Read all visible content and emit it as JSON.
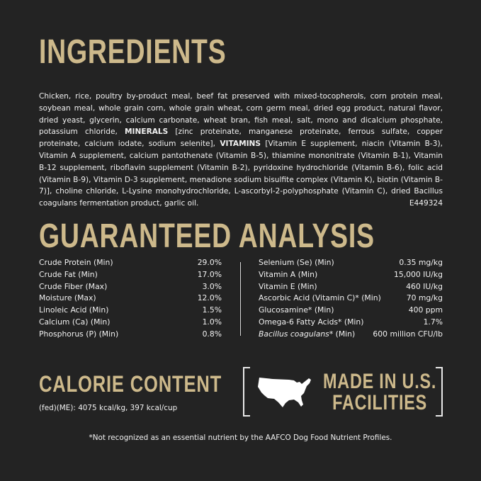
{
  "ingredients": {
    "title": "INGREDIENTS",
    "text_1": "Chicken, rice, poultry by-product meal, beef fat preserved with mixed-tocopherols, corn protein meal, soybean meal, whole grain corn, whole grain wheat, corn germ meal, dried egg product, natural flavor, dried yeast, glycerin, calcium carbonate, wheat bran, fish meal, salt, mono and dicalcium phosphate, potassium chloride, ",
    "minerals_label": "MINERALS",
    "text_2": " [zinc proteinate, manganese proteinate, ferrous sulfate, copper proteinate, calcium iodate, sodium selenite], ",
    "vitamins_label": "VITAMINS",
    "text_3": " [Vitamin E supplement, niacin (Vitamin B-3), Vitamin A supplement, calcium pantothenate (Vitamin B-5), thiamine mononitrate (Vitamin B-1), Vitamin B-12 supplement, riboflavin supplement (Vitamin B-2), pyridoxine hydrochloride (Vitamin B-6), folic acid (Vitamin B-9), Vitamin D-3 supplement, menadione sodium bisulfite complex (Vitamin K), biotin (Vitamin B-7)], choline chloride, L-Lysine monohydrochloride, L-ascorbyl-2-polyphosphate (Vitamin C), dried Bacillus coagulans fermentation product, garlic oil.",
    "code": "E449324"
  },
  "analysis": {
    "title": "GUARANTEED ANALYSIS",
    "left": [
      {
        "label": "Crude Protein (Min)",
        "value": "29.0%"
      },
      {
        "label": "Crude Fat (Min)",
        "value": "17.0%"
      },
      {
        "label": "Crude Fiber (Max)",
        "value": "3.0%"
      },
      {
        "label": "Moisture (Max)",
        "value": "12.0%"
      },
      {
        "label": "Linoleic Acid (Min)",
        "value": "1.5%"
      },
      {
        "label": "Calcium (Ca) (Min)",
        "value": "1.0%"
      },
      {
        "label": "Phosphorus (P) (Min)",
        "value": "0.8%"
      }
    ],
    "right": [
      {
        "label": "Selenium (Se) (Min)",
        "value": "0.35 mg/kg"
      },
      {
        "label": "Vitamin A (Min)",
        "value": "15,000 IU/kg"
      },
      {
        "label": "Vitamin E (Min)",
        "value": "460 IU/kg"
      },
      {
        "label": "Ascorbic Acid (Vitamin C)* (Min)",
        "value": "70 mg/kg"
      },
      {
        "label": "Glucosamine* (Min)",
        "value": "400 ppm"
      },
      {
        "label": "Omega-6 Fatty Acids* (Min)",
        "value": "1.7%"
      }
    ],
    "bacillus": {
      "label_italic": "Bacillus coagulans",
      "label_rest": "* (Min)",
      "value": "600 million CFU/lb"
    }
  },
  "calorie": {
    "title": "CALORIE CONTENT",
    "text": "(fed)(ME): 4075 kcal/kg, 397 kcal/cup"
  },
  "badge": {
    "line1": "MADE IN U.S.",
    "line2": "FACILITIES",
    "icon": "usa-map-icon"
  },
  "footnote": "*Not recognized as an essential nutrient by the AAFCO Dog Food Nutrient Profiles.",
  "colors": {
    "background": "#232323",
    "heading_gold": "#cdb98b",
    "text": "#f2f2f2"
  }
}
